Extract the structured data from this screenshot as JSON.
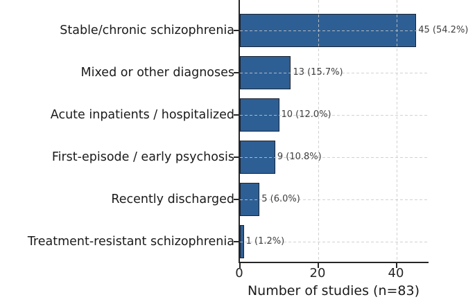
{
  "chart_data": {
    "type": "bar",
    "orientation": "horizontal",
    "title": "",
    "xlabel": "Number of studies (n=83)",
    "ylabel": "",
    "total_n": 83,
    "categories": [
      "Stable/chronic schizophrenia",
      "Mixed or other diagnoses",
      "Acute inpatients / hospitalized",
      "First-episode / early psychosis",
      "Recently discharged",
      "Treatment-resistant schizophrenia"
    ],
    "values": [
      45,
      13,
      10,
      9,
      5,
      1
    ],
    "percentages": [
      54.2,
      15.7,
      12.0,
      10.8,
      6.0,
      1.2
    ],
    "bar_labels": [
      "45 (54.2%)",
      "13 (15.7%)",
      "10 (12.0%)",
      "9 (10.8%)",
      "5 (6.0%)",
      "1 (1.2%)"
    ],
    "xticks": [
      0,
      20,
      40
    ],
    "xtick_labels": [
      "0",
      "20",
      "40"
    ],
    "xlim": [
      0,
      48.2
    ],
    "grid": "dashed, horizontal and vertical, drawn over bars",
    "legend": "none",
    "colors": {
      "bar_fill": "#2E5F94",
      "bar_edge": "#1A2230",
      "grid_line": "#C9C9C9",
      "axis_spine": "#262626",
      "category_text": "#1A1A1A",
      "value_text": "#404040",
      "background": "#FFFFFF"
    }
  }
}
